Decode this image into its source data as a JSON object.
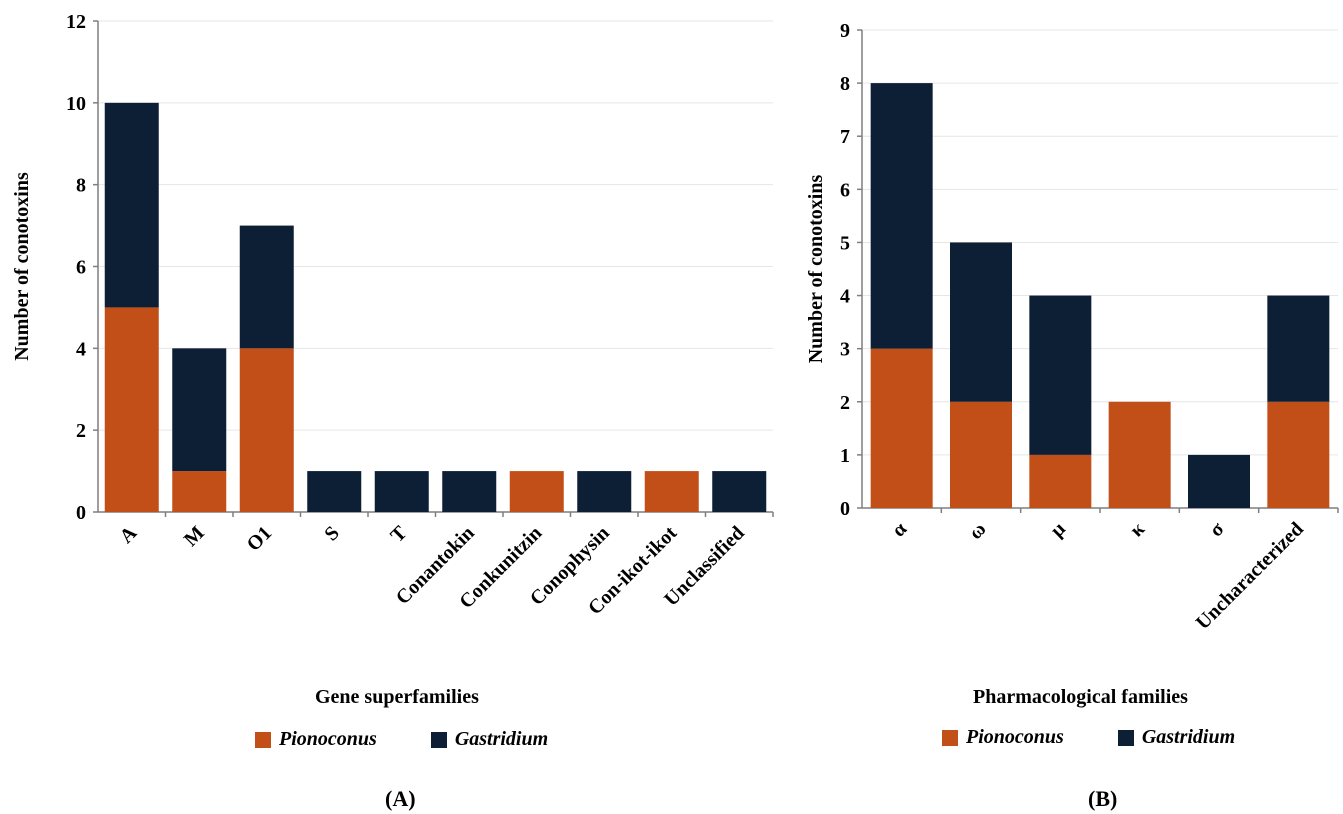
{
  "colors": {
    "pionoconus": "#c24f18",
    "gastridium": "#0c1f35",
    "grid": "#e6e6e6",
    "axis": "#7f7f7f"
  },
  "chart_data": [
    {
      "type": "bar",
      "stacked": true,
      "panel_label": "(A)",
      "xlabel": "Gene superfamilies",
      "ylabel": "Number of conotoxins",
      "ylim": [
        0,
        12
      ],
      "yticks": [
        0,
        2,
        4,
        6,
        8,
        10,
        12
      ],
      "grid": true,
      "legend": "bottom",
      "categories": [
        "A",
        "M",
        "O1",
        "S",
        "T",
        "Conantokin",
        "Conkunitzin",
        "Conophysin",
        "Con-ikot-ikot",
        "Unclassified"
      ],
      "series": [
        {
          "name": "Pionoconus",
          "values": [
            5,
            1,
            4,
            0,
            0,
            0,
            1,
            0,
            1,
            0
          ]
        },
        {
          "name": "Gastridium",
          "values": [
            5,
            3,
            3,
            1,
            1,
            1,
            0,
            1,
            0,
            1
          ]
        }
      ]
    },
    {
      "type": "bar",
      "stacked": true,
      "panel_label": "(B)",
      "xlabel": "Pharmacological families",
      "ylabel": "Number of conotoxins",
      "ylim": [
        0,
        9
      ],
      "yticks": [
        0,
        1,
        2,
        3,
        4,
        5,
        6,
        7,
        8,
        9
      ],
      "grid": true,
      "legend": "bottom",
      "categories": [
        "α",
        "ω",
        "μ",
        "κ",
        "σ",
        "Uncharacterized"
      ],
      "series": [
        {
          "name": "Pionoconus",
          "values": [
            3,
            2,
            1,
            2,
            0,
            2
          ]
        },
        {
          "name": "Gastridium",
          "values": [
            5,
            3,
            3,
            0,
            1,
            2
          ]
        }
      ]
    }
  ]
}
